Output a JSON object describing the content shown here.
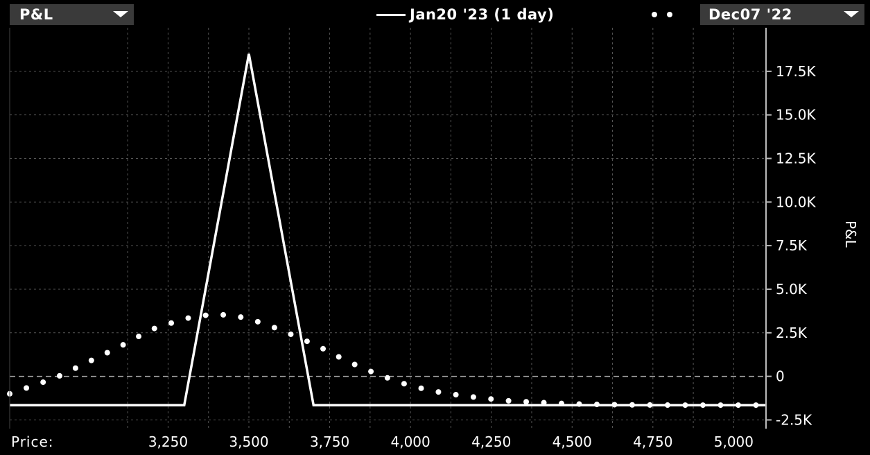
{
  "header": {
    "metric_dropdown": {
      "label": "P&L"
    },
    "legend_line_label": "Jan20 '23 (1 day)",
    "date_dropdown": {
      "label": "Dec07 '22"
    }
  },
  "chart_data": {
    "type": "line",
    "ylabel": "P&L",
    "xlabel": "Price:",
    "xlim": [
      2760,
      5100
    ],
    "ylim": [
      -3000,
      20000
    ],
    "x_ticks": [
      3250,
      3500,
      3750,
      4000,
      4250,
      4500,
      4750,
      5000
    ],
    "x_tick_labels": [
      "3,250",
      "3,500",
      "3,750",
      "4,000",
      "4,250",
      "4,500",
      "4,750",
      "5,000"
    ],
    "y_ticks": [
      -2500,
      0,
      2500,
      5000,
      7500,
      10000,
      12500,
      15000,
      17500
    ],
    "y_tick_labels": [
      "-2.5K",
      "0",
      "2.5K",
      "5.0K",
      "7.5K",
      "10.0K",
      "12.5K",
      "15.0K",
      "17.5K"
    ],
    "grid": true,
    "series": [
      {
        "name": "Jan20 '23 (1 day)",
        "style": "solid",
        "x": [
          2760,
          3300,
          3500,
          3700,
          5100
        ],
        "y": [
          -1650,
          -1650,
          18500,
          -1650,
          -1650
        ]
      },
      {
        "name": "Dec07 '22",
        "style": "dotted",
        "x": [
          2760,
          2900,
          3000,
          3100,
          3200,
          3300,
          3350,
          3400,
          3450,
          3500,
          3550,
          3600,
          3650,
          3700,
          3750,
          3800,
          3900,
          4000,
          4100,
          4200,
          4300,
          4400,
          4500,
          4600,
          4700,
          4800,
          4900,
          5000,
          5100
        ],
        "y": [
          -1000,
          -100,
          800,
          1700,
          2700,
          3300,
          3480,
          3550,
          3500,
          3300,
          3000,
          2650,
          2250,
          1850,
          1400,
          900,
          100,
          -550,
          -950,
          -1200,
          -1400,
          -1500,
          -1580,
          -1620,
          -1640,
          -1650,
          -1650,
          -1650,
          -1650
        ]
      }
    ]
  },
  "colors": {
    "background": "#000000",
    "foreground": "#ffffff",
    "dropdown_bg": "#3a3a3a",
    "grid": "#555555"
  }
}
